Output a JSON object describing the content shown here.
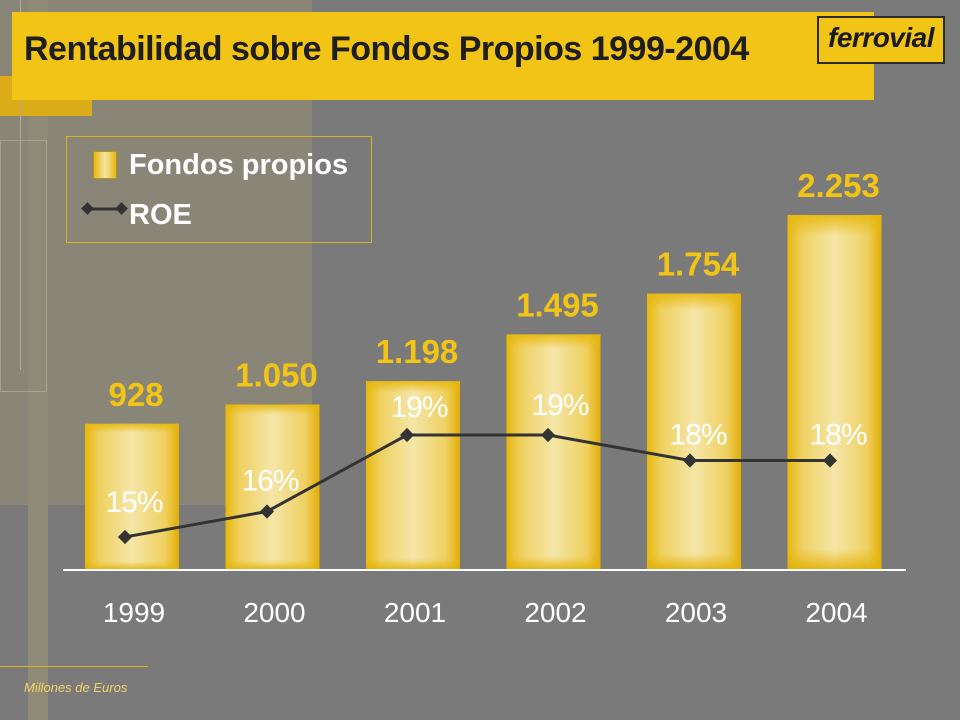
{
  "title": "Rentabilidad sobre Fondos Propios 1999-2004",
  "logo_text": "ferrovial",
  "footer_note": "Millones de Euros",
  "legend": {
    "bar_label": "Fondos propios",
    "line_label": "ROE"
  },
  "colors": {
    "accent": "#f2c416",
    "bar": "#e8b80c",
    "bar_light": "#f3e29a",
    "line": "#333333",
    "background": "#7a7a7a"
  },
  "chart_data": {
    "type": "bar",
    "categories": [
      "1999",
      "2000",
      "2001",
      "2002",
      "2003",
      "2004"
    ],
    "series": [
      {
        "name": "Fondos propios",
        "type": "bar",
        "values": [
          928,
          1050,
          1198,
          1495,
          1754,
          2253
        ],
        "labels": [
          "928",
          "1.050",
          "1.198",
          "1.495",
          "1.754",
          "2.253"
        ]
      },
      {
        "name": "ROE",
        "type": "line",
        "values": [
          15,
          16,
          19,
          19,
          18,
          18
        ],
        "labels": [
          "15%",
          "16%",
          "19%",
          "19%",
          "18%",
          "18%"
        ]
      }
    ],
    "title": "Rentabilidad sobre Fondos Propios 1999-2004",
    "xlabel": "",
    "ylabel": "",
    "ylim": [
      0,
      2300
    ],
    "legend_position": "top-left",
    "grid": false
  }
}
